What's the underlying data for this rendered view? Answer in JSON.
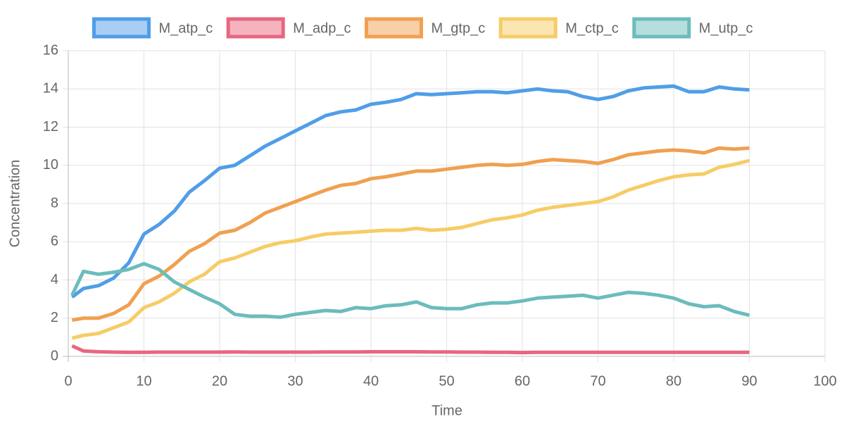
{
  "chart_data": {
    "type": "line",
    "x_label": "Time",
    "y_label": "Concentration",
    "legend": "top",
    "grid": true,
    "xlim": [
      0,
      100
    ],
    "xticks": [
      0,
      10,
      20,
      30,
      40,
      50,
      60,
      70,
      80,
      90,
      100
    ],
    "ylim": [
      0,
      16
    ],
    "yticks": [
      0,
      2,
      4,
      6,
      8,
      10,
      12,
      14,
      16
    ],
    "x": [
      0.5,
      2,
      4,
      6,
      8,
      10,
      12,
      14,
      16,
      18,
      20,
      22,
      24,
      26,
      28,
      30,
      32,
      34,
      36,
      38,
      40,
      42,
      44,
      46,
      48,
      50,
      52,
      54,
      56,
      58,
      60,
      62,
      64,
      66,
      68,
      70,
      72,
      74,
      76,
      78,
      80,
      82,
      84,
      86,
      88,
      90
    ],
    "series": [
      {
        "name": "M_atp_c",
        "color": "#4f9ee8",
        "fill": "#a9cdf4",
        "values": [
          3.1,
          3.55,
          3.7,
          4.1,
          4.9,
          6.4,
          6.9,
          7.6,
          8.6,
          9.2,
          9.85,
          10.0,
          10.5,
          11.0,
          11.4,
          11.8,
          12.2,
          12.6,
          12.8,
          12.9,
          13.2,
          13.3,
          13.45,
          13.75,
          13.7,
          13.75,
          13.8,
          13.85,
          13.85,
          13.8,
          13.9,
          14.0,
          13.9,
          13.85,
          13.6,
          13.45,
          13.6,
          13.9,
          14.05,
          14.1,
          14.15,
          13.85,
          13.85,
          14.1,
          14.0,
          13.95
        ]
      },
      {
        "name": "M_adp_c",
        "color": "#e8667f",
        "fill": "#f5b3c0",
        "values": [
          0.55,
          0.28,
          0.24,
          0.22,
          0.21,
          0.21,
          0.22,
          0.22,
          0.22,
          0.22,
          0.22,
          0.23,
          0.22,
          0.22,
          0.22,
          0.22,
          0.22,
          0.23,
          0.23,
          0.23,
          0.24,
          0.24,
          0.24,
          0.24,
          0.23,
          0.23,
          0.22,
          0.22,
          0.21,
          0.21,
          0.2,
          0.21,
          0.21,
          0.21,
          0.21,
          0.21,
          0.21,
          0.21,
          0.21,
          0.21,
          0.21,
          0.21,
          0.21,
          0.21,
          0.21,
          0.21
        ]
      },
      {
        "name": "M_gtp_c",
        "color": "#f0a050",
        "fill": "#f8cfa7",
        "values": [
          1.9,
          2.0,
          2.0,
          2.25,
          2.7,
          3.8,
          4.2,
          4.8,
          5.5,
          5.9,
          6.45,
          6.6,
          7.0,
          7.5,
          7.8,
          8.1,
          8.4,
          8.7,
          8.95,
          9.05,
          9.3,
          9.4,
          9.55,
          9.7,
          9.7,
          9.8,
          9.9,
          10.0,
          10.05,
          10.0,
          10.05,
          10.2,
          10.3,
          10.25,
          10.2,
          10.1,
          10.3,
          10.55,
          10.65,
          10.75,
          10.8,
          10.75,
          10.65,
          10.9,
          10.85,
          10.9
        ]
      },
      {
        "name": "M_ctp_c",
        "color": "#f6cc66",
        "fill": "#fbe6b3",
        "values": [
          0.95,
          1.1,
          1.2,
          1.5,
          1.8,
          2.55,
          2.85,
          3.3,
          3.9,
          4.3,
          4.95,
          5.15,
          5.45,
          5.75,
          5.95,
          6.05,
          6.25,
          6.4,
          6.45,
          6.5,
          6.55,
          6.6,
          6.6,
          6.7,
          6.6,
          6.65,
          6.75,
          6.95,
          7.15,
          7.25,
          7.4,
          7.65,
          7.8,
          7.9,
          8.0,
          8.1,
          8.35,
          8.7,
          8.95,
          9.2,
          9.4,
          9.5,
          9.55,
          9.9,
          10.05,
          10.25
        ]
      },
      {
        "name": "M_utp_c",
        "color": "#6cbcbc",
        "fill": "#b6dede",
        "values": [
          3.2,
          4.45,
          4.3,
          4.4,
          4.55,
          4.85,
          4.55,
          3.9,
          3.5,
          3.1,
          2.75,
          2.2,
          2.1,
          2.1,
          2.05,
          2.2,
          2.3,
          2.4,
          2.35,
          2.55,
          2.5,
          2.65,
          2.7,
          2.85,
          2.55,
          2.5,
          2.5,
          2.7,
          2.8,
          2.8,
          2.9,
          3.05,
          3.1,
          3.15,
          3.2,
          3.05,
          3.2,
          3.35,
          3.3,
          3.2,
          3.05,
          2.75,
          2.6,
          2.65,
          2.35,
          2.15
        ]
      }
    ]
  }
}
